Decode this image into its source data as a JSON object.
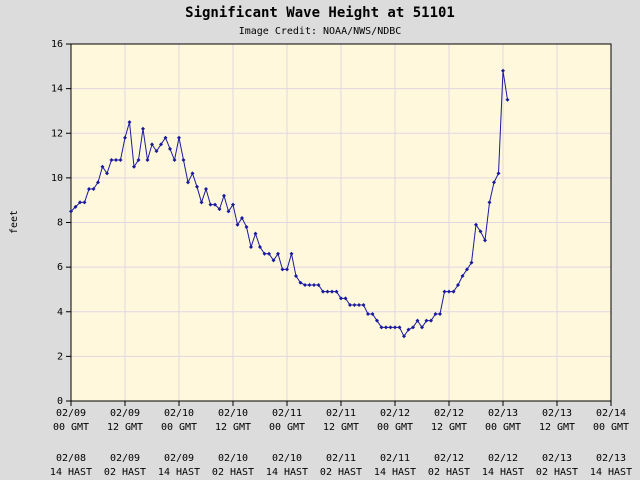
{
  "chart_data": {
    "type": "line",
    "title": "Significant Wave Height at 51101",
    "subtitle": "Image Credit: NOAA/NWS/NDBC",
    "y_label": "feet",
    "color": "#1a1aa0",
    "grid": true,
    "ylim": [
      0,
      16
    ],
    "yticks": [
      0,
      2,
      4,
      6,
      8,
      10,
      12,
      14,
      16
    ],
    "xlim": [
      "02/09 00",
      "02/14 00"
    ],
    "xticks": [
      {
        "value": "02/09 00",
        "label": [
          "02/09",
          "00 GMT"
        ]
      },
      {
        "value": "02/09 12",
        "label": [
          "02/09",
          "12 GMT"
        ]
      },
      {
        "value": "02/10 00",
        "label": [
          "02/10",
          "00 GMT"
        ]
      },
      {
        "value": "02/10 12",
        "label": [
          "02/10",
          "12 GMT"
        ]
      },
      {
        "value": "02/11 00",
        "label": [
          "02/11",
          "00 GMT"
        ]
      },
      {
        "value": "02/11 12",
        "label": [
          "02/11",
          "12 GMT"
        ]
      },
      {
        "value": "02/12 00",
        "label": [
          "02/12",
          "00 GMT"
        ]
      },
      {
        "value": "02/12 12",
        "label": [
          "02/12",
          "12 GMT"
        ]
      },
      {
        "value": "02/13 00",
        "label": [
          "02/13",
          "00 GMT"
        ]
      },
      {
        "value": "02/13 12",
        "label": [
          "02/13",
          "12 GMT"
        ]
      },
      {
        "value": "02/14 00",
        "label": [
          "02/14",
          "00 GMT"
        ]
      }
    ],
    "xticks_local": [
      {
        "value": "02/09 00",
        "label": [
          "02/08",
          "14 HAST"
        ]
      },
      {
        "value": "02/09 12",
        "label": [
          "02/09",
          "02 HAST"
        ]
      },
      {
        "value": "02/10 00",
        "label": [
          "02/09",
          "14 HAST"
        ]
      },
      {
        "value": "02/10 12",
        "label": [
          "02/10",
          "02 HAST"
        ]
      },
      {
        "value": "02/11 00",
        "label": [
          "02/10",
          "14 HAST"
        ]
      },
      {
        "value": "02/11 12",
        "label": [
          "02/11",
          "02 HAST"
        ]
      },
      {
        "value": "02/12 00",
        "label": [
          "02/11",
          "14 HAST"
        ]
      },
      {
        "value": "02/12 12",
        "label": [
          "02/12",
          "02 HAST"
        ]
      },
      {
        "value": "02/13 00",
        "label": [
          "02/12",
          "14 HAST"
        ]
      },
      {
        "value": "02/13 12",
        "label": [
          "02/13",
          "02 HAST"
        ]
      },
      {
        "value": "02/14 00",
        "label": [
          "02/13",
          "14 HAST"
        ]
      }
    ],
    "x": [
      "02/09 00",
      "02/09 01",
      "02/09 02",
      "02/09 03",
      "02/09 04",
      "02/09 05",
      "02/09 06",
      "02/09 07",
      "02/09 08",
      "02/09 09",
      "02/09 10",
      "02/09 11",
      "02/09 12",
      "02/09 13",
      "02/09 14",
      "02/09 15",
      "02/09 16",
      "02/09 17",
      "02/09 18",
      "02/09 19",
      "02/09 20",
      "02/09 21",
      "02/09 22",
      "02/09 23",
      "02/10 00",
      "02/10 01",
      "02/10 02",
      "02/10 03",
      "02/10 04",
      "02/10 05",
      "02/10 06",
      "02/10 07",
      "02/10 08",
      "02/10 09",
      "02/10 10",
      "02/10 11",
      "02/10 12",
      "02/10 13",
      "02/10 14",
      "02/10 15",
      "02/10 16",
      "02/10 17",
      "02/10 18",
      "02/10 19",
      "02/10 20",
      "02/10 21",
      "02/10 22",
      "02/10 23",
      "02/11 00",
      "02/11 01",
      "02/11 02",
      "02/11 03",
      "02/11 04",
      "02/11 05",
      "02/11 06",
      "02/11 07",
      "02/11 08",
      "02/11 09",
      "02/11 10",
      "02/11 11",
      "02/11 12",
      "02/11 13",
      "02/11 14",
      "02/11 15",
      "02/11 16",
      "02/11 17",
      "02/11 18",
      "02/11 19",
      "02/11 20",
      "02/11 21",
      "02/11 22",
      "02/11 23",
      "02/12 00",
      "02/12 01",
      "02/12 02",
      "02/12 03",
      "02/12 04",
      "02/12 05",
      "02/12 06",
      "02/12 07",
      "02/12 08",
      "02/12 09",
      "02/12 10",
      "02/12 11",
      "02/12 12",
      "02/12 13",
      "02/12 14",
      "02/12 15",
      "02/12 16",
      "02/12 17",
      "02/12 18",
      "02/12 19",
      "02/12 20",
      "02/12 21",
      "02/12 22",
      "02/12 23",
      "02/13 00",
      "02/13 01"
    ],
    "values": [
      8.5,
      8.7,
      8.9,
      8.9,
      9.5,
      9.5,
      9.8,
      10.5,
      10.2,
      10.8,
      10.8,
      10.8,
      11.8,
      12.5,
      10.5,
      10.8,
      12.2,
      10.8,
      11.5,
      11.2,
      11.5,
      11.8,
      11.3,
      10.8,
      11.8,
      10.8,
      9.8,
      10.2,
      9.6,
      8.9,
      9.5,
      8.8,
      8.8,
      8.6,
      9.2,
      8.5,
      8.8,
      7.9,
      8.2,
      7.8,
      6.9,
      7.5,
      6.9,
      6.6,
      6.6,
      6.3,
      6.6,
      5.9,
      5.9,
      6.6,
      5.6,
      5.3,
      5.2,
      5.2,
      5.2,
      5.2,
      4.9,
      4.9,
      4.9,
      4.9,
      4.6,
      4.6,
      4.3,
      4.3,
      4.3,
      4.3,
      3.9,
      3.9,
      3.6,
      3.3,
      3.3,
      3.3,
      3.3,
      3.3,
      2.9,
      3.2,
      3.3,
      3.6,
      3.3,
      3.6,
      3.6,
      3.9,
      3.9,
      4.9,
      4.9,
      4.9,
      5.2,
      5.6,
      5.9,
      6.2,
      7.9,
      7.6,
      7.2,
      8.9,
      9.8,
      10.2,
      14.8,
      13.5
    ]
  }
}
